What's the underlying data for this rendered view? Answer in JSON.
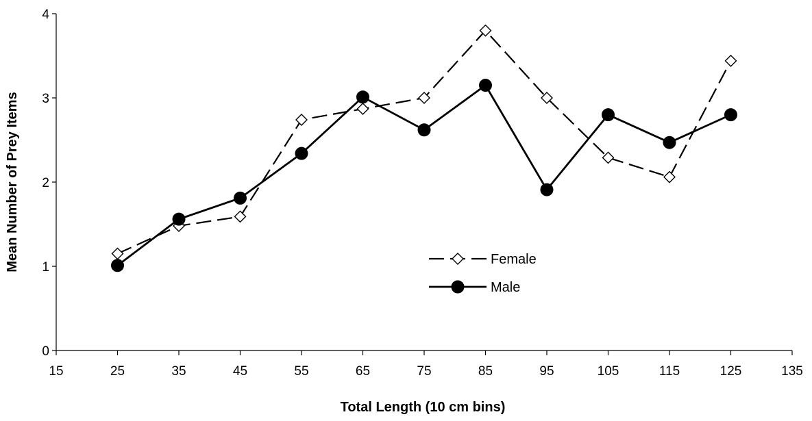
{
  "chart_data": {
    "type": "line",
    "title": "",
    "xlabel": "Total Length (10 cm bins)",
    "ylabel": "Mean Number of Prey Items",
    "xlim": [
      15,
      135
    ],
    "ylim": [
      0,
      4
    ],
    "xticks": [
      15,
      25,
      35,
      45,
      55,
      65,
      75,
      85,
      95,
      105,
      115,
      125,
      135
    ],
    "yticks": [
      0,
      1,
      2,
      3,
      4
    ],
    "grid": false,
    "legend_position": "center-right",
    "series": [
      {
        "name": "Female",
        "x": [
          25,
          35,
          45,
          55,
          65,
          75,
          85,
          95,
          105,
          115,
          125
        ],
        "values": [
          1.15,
          1.48,
          1.59,
          2.74,
          2.87,
          3.0,
          3.8,
          3.0,
          2.29,
          2.06,
          3.44
        ],
        "line_style": "dashed",
        "marker": "open-diamond",
        "color": "#000000"
      },
      {
        "name": "Male",
        "x": [
          25,
          35,
          45,
          55,
          65,
          75,
          85,
          95,
          105,
          115,
          125
        ],
        "values": [
          1.01,
          1.56,
          1.81,
          2.34,
          3.01,
          2.62,
          3.15,
          1.91,
          2.8,
          2.47,
          2.8
        ],
        "line_style": "solid",
        "marker": "filled-circle",
        "color": "#000000"
      }
    ]
  }
}
